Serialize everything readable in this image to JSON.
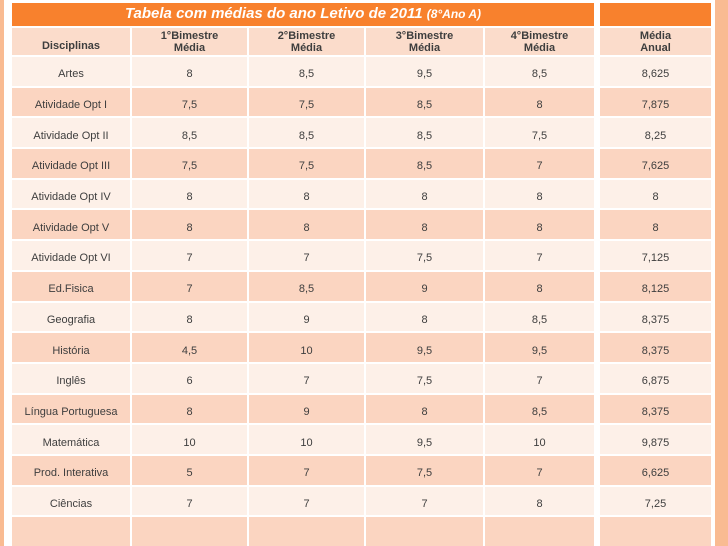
{
  "slide": {
    "title": "Tabela com médias do ano Letivo de 2011 ",
    "title_suffix": "(8°Ano A)"
  },
  "table": {
    "header": {
      "disciplines": "Disciplinas",
      "bimesters": [
        {
          "line1": "1°Bimestre",
          "line2": "Média"
        },
        {
          "line1": "2°Bimestre",
          "line2": "Média"
        },
        {
          "line1": "3°Bimestre",
          "line2": "Média"
        },
        {
          "line1": "4°Bimestre",
          "line2": "Média"
        }
      ],
      "annual": {
        "line1": "Média",
        "line2": "Anual"
      }
    },
    "rows": [
      {
        "discipline": "Artes",
        "b1": "8",
        "b2": "8,5",
        "b3": "9,5",
        "b4": "8,5",
        "annual": "8,625"
      },
      {
        "discipline": "Atividade Opt I",
        "b1": "7,5",
        "b2": "7,5",
        "b3": "8,5",
        "b4": "8",
        "annual": "7,875"
      },
      {
        "discipline": "Atividade Opt II",
        "b1": "8,5",
        "b2": "8,5",
        "b3": "8,5",
        "b4": "7,5",
        "annual": "8,25"
      },
      {
        "discipline": "Atividade Opt III",
        "b1": "7,5",
        "b2": "7,5",
        "b3": "8,5",
        "b4": "7",
        "annual": "7,625"
      },
      {
        "discipline": "Atividade Opt IV",
        "b1": "8",
        "b2": "8",
        "b3": "8",
        "b4": "8",
        "annual": "8"
      },
      {
        "discipline": "Atividade Opt V",
        "b1": "8",
        "b2": "8",
        "b3": "8",
        "b4": "8",
        "annual": "8"
      },
      {
        "discipline": "Atividade Opt VI",
        "b1": "7",
        "b2": "7",
        "b3": "7,5",
        "b4": "7",
        "annual": "7,125"
      },
      {
        "discipline": "Ed.Fisica",
        "b1": "7",
        "b2": "8,5",
        "b3": "9",
        "b4": "8",
        "annual": "8,125"
      },
      {
        "discipline": "Geografia",
        "b1": "8",
        "b2": "9",
        "b3": "8",
        "b4": "8,5",
        "annual": "8,375"
      },
      {
        "discipline": "História",
        "b1": "4,5",
        "b2": "10",
        "b3": "9,5",
        "b4": "9,5",
        "annual": "8,375"
      },
      {
        "discipline": "Inglês",
        "b1": "6",
        "b2": "7",
        "b3": "7,5",
        "b4": "7",
        "annual": "6,875"
      },
      {
        "discipline": "Língua Portuguesa",
        "b1": "8",
        "b2": "9",
        "b3": "8",
        "b4": "8,5",
        "annual": "8,375"
      },
      {
        "discipline": "Matemática",
        "b1": "10",
        "b2": "10",
        "b3": "9,5",
        "b4": "10",
        "annual": "9,875"
      },
      {
        "discipline": "Prod. Interativa",
        "b1": "5",
        "b2": "7",
        "b3": "7,5",
        "b4": "7",
        "annual": "6,625"
      },
      {
        "discipline": "Ciências",
        "b1": "7",
        "b2": "7",
        "b3": "7",
        "b4": "8",
        "annual": "7,25"
      }
    ],
    "trailing_empty_rows": 1
  },
  "colors": {
    "accent_orange": "#F8812D",
    "outer_background": "#F9BB92",
    "header_row": "#FBDCCB",
    "row_light": "#FDF0E8",
    "row_pink": "#FBD5C1",
    "text": "#3E3E3E",
    "title_text": "#FFFFFF"
  }
}
